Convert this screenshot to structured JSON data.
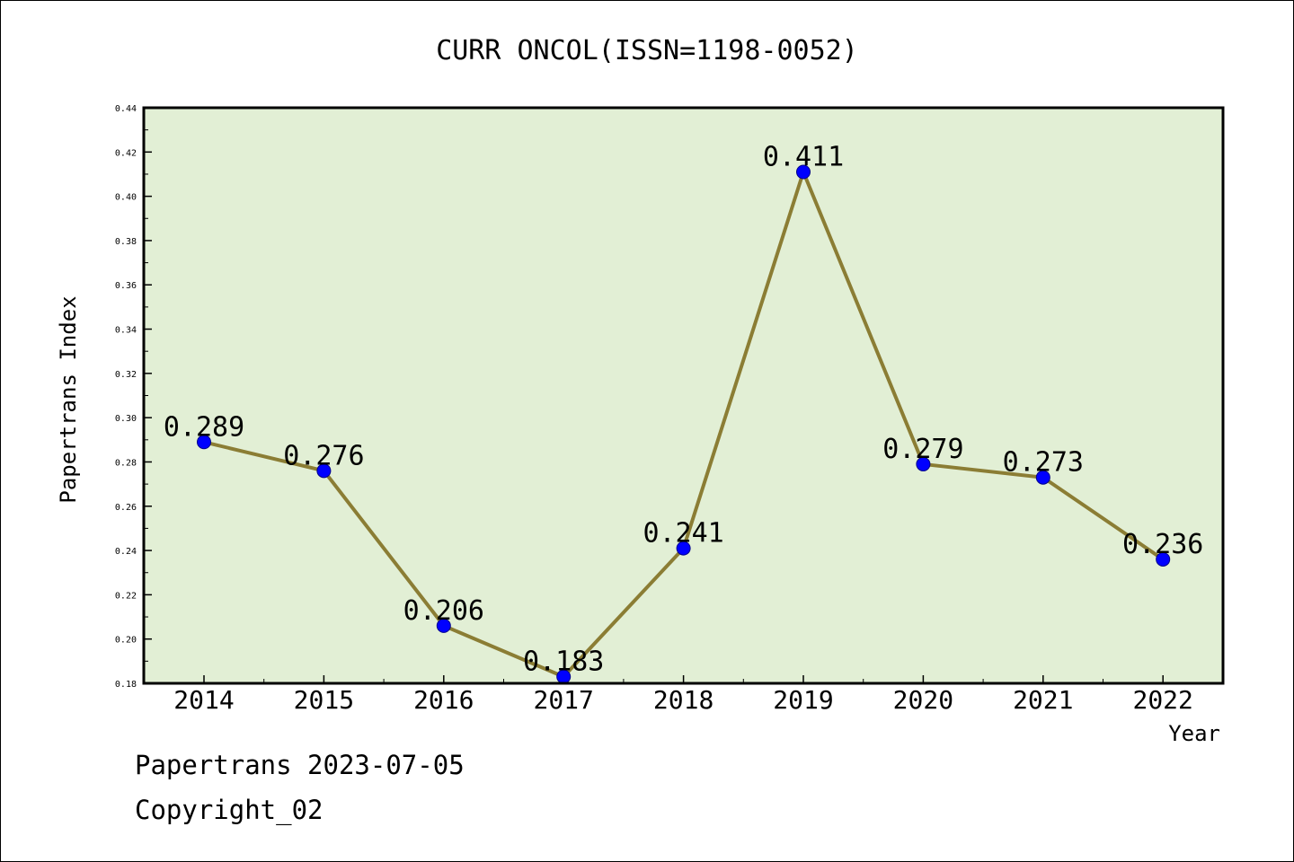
{
  "colors": {
    "plot_background": "#e2efd5",
    "line": "#8b7d34",
    "marker": "#0000ff",
    "axis": "#000000"
  },
  "chart_data": {
    "type": "line",
    "title": "CURR ONCOL(ISSN=1198-0052)",
    "xlabel": "Year",
    "ylabel": "Papertrans Index",
    "ylim": [
      0.18,
      0.44
    ],
    "yticks": [
      0.18,
      0.2,
      0.22,
      0.24,
      0.26,
      0.28,
      0.3,
      0.32,
      0.34,
      0.36,
      0.38,
      0.4,
      0.42,
      0.44
    ],
    "ytick_labels": [
      "0.18",
      "0.20",
      "0.22",
      "0.24",
      "0.26",
      "0.28",
      "0.30",
      "0.32",
      "0.34",
      "0.36",
      "0.38",
      "0.40",
      "0.42",
      "0.44"
    ],
    "categories": [
      "2014",
      "2015",
      "2016",
      "2017",
      "2018",
      "2019",
      "2020",
      "2021",
      "2022"
    ],
    "values": [
      0.289,
      0.276,
      0.206,
      0.183,
      0.241,
      0.411,
      0.279,
      0.273,
      0.236
    ],
    "data_labels": [
      "0.289",
      "0.276",
      "0.206",
      "0.183",
      "0.241",
      "0.411",
      "0.279",
      "0.273",
      "0.236"
    ],
    "grid": false,
    "legend": "none"
  },
  "footer": {
    "date_line": "Papertrans 2023-07-05",
    "copyright_line": "Copyright_02"
  }
}
